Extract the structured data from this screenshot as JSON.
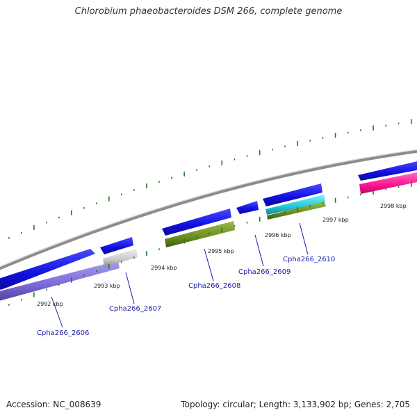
{
  "header": {
    "title": "Chlorobium phaeobacteroides DSM 266, complete genome"
  },
  "footer": {
    "accession": "Accession: NC_008639",
    "summary": "Topology: circular; Length: 3,133,902 bp; Genes: 2,705"
  },
  "colors": {
    "backbone": "#8c8c8c",
    "tick": "#1f7a1f",
    "forward_gene": "#1010e0",
    "label": "#1a1aa6"
  },
  "kbp_labels": [
    "2992 kbp",
    "2993 kbp",
    "2994 kbp",
    "2995 kbp",
    "2996 kbp",
    "2997 kbp",
    "2998 kbp"
  ],
  "genes": [
    {
      "label": "Cpha266_2606",
      "color": "#7b68d8"
    },
    {
      "label": "Cpha266_2607",
      "color": "#c8c8c8"
    },
    {
      "label": "Cpha266_2608",
      "color": "#6b8e23"
    },
    {
      "label": "Cpha266_2609",
      "color": "#1010e0"
    },
    {
      "label": "Cpha266_2610",
      "color": "#20c8d8"
    },
    {
      "label": "",
      "color": "#ff1493"
    }
  ]
}
